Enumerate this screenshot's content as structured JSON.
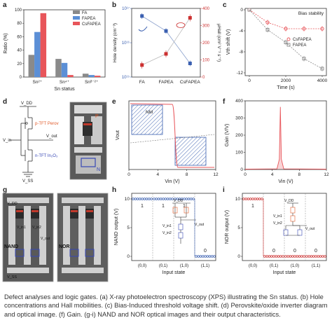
{
  "panels": {
    "a": {
      "label": "a"
    },
    "b": {
      "label": "b"
    },
    "c": {
      "label": "c"
    },
    "d": {
      "label": "d"
    },
    "e": {
      "label": "e"
    },
    "f": {
      "label": "f"
    },
    "g": {
      "label": "g"
    },
    "h": {
      "label": "h"
    },
    "i": {
      "label": "i"
    }
  },
  "chart_data": [
    {
      "id": "a",
      "type": "bar",
      "categories": [
        "Sn²⁺",
        "Sn⁴⁺",
        "Snᵟ⁻²⁺"
      ],
      "series": [
        {
          "name": "FA",
          "values": [
            33,
            27,
            5
          ],
          "color": "#8a8a8a"
        },
        {
          "name": "FAPEA",
          "values": [
            67,
            21,
            3
          ],
          "color": "#5b8fd6"
        },
        {
          "name": "CsFAPEA",
          "values": [
            95,
            3,
            2
          ],
          "color": "#e8555a"
        }
      ],
      "xlabel": "Sn status",
      "ylabel": "Ratio (%)",
      "ylim": [
        0,
        100
      ],
      "yticks": [
        "0",
        "20",
        "40",
        "60",
        "80",
        "100"
      ],
      "legend": "top-right"
    },
    {
      "id": "b",
      "type": "scatter",
      "categories": [
        "FA",
        "FAPEA",
        "CsFAPEA"
      ],
      "series": [
        {
          "name": "Hole density",
          "axis": "left",
          "values": [
            6e+16,
            2.2e+16,
            2500000000000000.0
          ],
          "color": "#3a5fb0"
        },
        {
          "name": "Hall mobility",
          "axis": "right",
          "values": [
            70,
            135,
            345
          ],
          "color": "#cc3030"
        }
      ],
      "ylabel_left": "Hole density (cm⁻³)",
      "ylabel_right": "μHall (cm² V⁻¹ s⁻¹)",
      "ylim_left": [
        1000000000000000.0,
        1e+17
      ],
      "ylim_right": [
        0,
        400
      ],
      "yscale_left": "log",
      "yticks_left": [
        "10¹⁵",
        "10¹⁶",
        "10¹⁷"
      ],
      "yticks_right": [
        "0",
        "100",
        "200",
        "300",
        "400"
      ]
    },
    {
      "id": "c",
      "type": "line",
      "title": "Bias stability",
      "x": [
        0,
        1000,
        2000,
        3000,
        4000
      ],
      "series": [
        {
          "name": "CsFAPEA",
          "values": [
            0,
            -2.4,
            -3.6,
            -3.6,
            -3.6
          ],
          "color": "#e8555a"
        },
        {
          "name": "FAPEA",
          "values": [
            0,
            -3.8,
            -6.2,
            -9.3,
            -11.2
          ],
          "color": "#8a8a8a"
        }
      ],
      "xlabel": "Time (s)",
      "ylabel": "Vth shift (V)",
      "xlim": [
        0,
        4000
      ],
      "ylim": [
        -12,
        0
      ],
      "xticks": [
        "0",
        "2000",
        "4000"
      ],
      "yticks": [
        "0",
        "-4",
        "-8",
        "-12"
      ],
      "legend": "center-right"
    },
    {
      "id": "e",
      "type": "line",
      "xlabel": "Vin (V)",
      "ylabel": "Vout",
      "xticks": [
        "0",
        "4",
        "8",
        "12"
      ],
      "annotation": "NM"
    },
    {
      "id": "f",
      "type": "line",
      "xlabel": "Vin (V)",
      "ylabel": "Gain (V/V)",
      "xlim": [
        0,
        12
      ],
      "ylim": [
        0,
        400
      ],
      "xticks": [
        "0",
        "4",
        "8",
        "12"
      ],
      "yticks": [
        "0",
        "100",
        "200",
        "300",
        "400"
      ],
      "peak": {
        "x": 5.2,
        "y": 365
      }
    },
    {
      "id": "h",
      "type": "line",
      "xlabel": "Input state",
      "ylabel": "NAND output (V)",
      "categories": [
        "(0,0)",
        "(0,1)",
        "(1,0)",
        "(1,1)"
      ],
      "yticks": [
        "0",
        "5",
        "10"
      ],
      "logic_labels": [
        "1",
        "1",
        "1",
        "0"
      ],
      "values": [
        10,
        10,
        10,
        0
      ]
    },
    {
      "id": "i",
      "type": "line",
      "xlabel": "Input state",
      "ylabel": "NOR output (V)",
      "categories": [
        "(0,0)",
        "(0,1)",
        "(1,0)",
        "(1,1)"
      ],
      "yticks": [
        "0",
        "5",
        "10"
      ],
      "logic_labels": [
        "1",
        "0",
        "0",
        "0"
      ],
      "values": [
        10,
        0,
        0,
        0
      ]
    }
  ],
  "diagram_d": {
    "vdd": "V_DD",
    "vss": "V_SS",
    "vin": "V_in",
    "vout": "V_out",
    "ptft": "p-TFT Perov",
    "ntft": "n-TFT In₂O₃",
    "photo_p": "P",
    "photo_n": "N"
  },
  "panel_g": {
    "nand": "NAND",
    "nor": "NOR",
    "vdd": "V_DD",
    "vss": "V_SS",
    "vin1": "V_in1",
    "vin2": "V_in2",
    "vout": "V_out"
  },
  "circuit_h": {
    "vdd": "V_DD",
    "vin1": "V_in1",
    "vin2": "V_in2",
    "vout": "V_out"
  },
  "circuit_i": {
    "vdd": "V_DD",
    "vin1": "V_in1",
    "vin2": "V_in2",
    "vout": "V_out"
  },
  "caption": "Defect analyses and logic gates. (a) X-ray photoelectron spectroscopy (XPS) illustrating the Sn status. (b) Hole concentrations and Hall mobilities. (c) Bias-Induced threshold voltage shift. (d) Perovskite/oxide inverter diagram and optical image. (f) Gain. (g-i) NAND and NOR optical images and their output characteristics."
}
